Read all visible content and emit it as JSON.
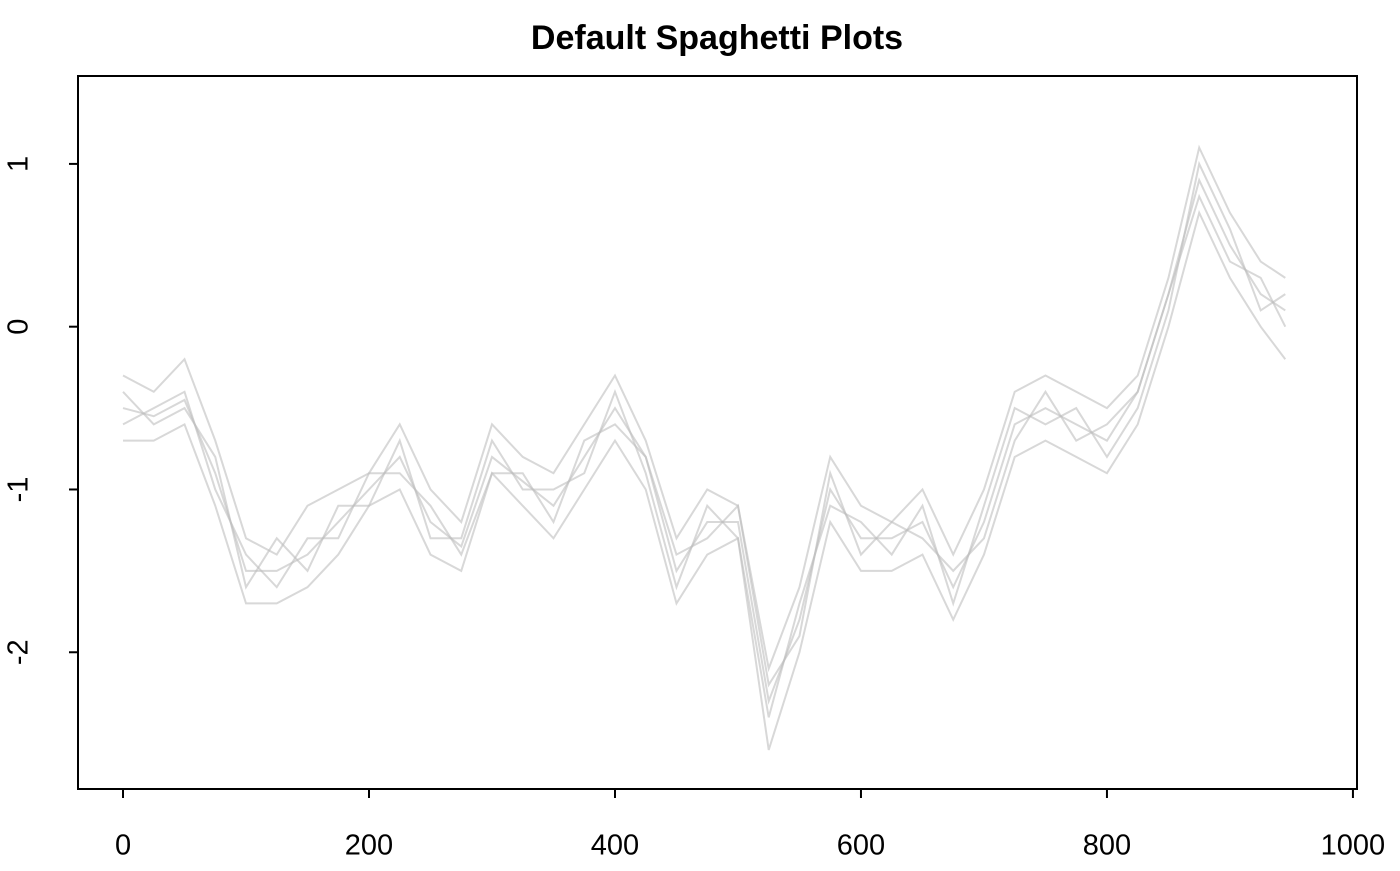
{
  "chart_data": {
    "type": "line",
    "title": "Default Spaghetti Plots",
    "x": [
      0,
      25,
      50,
      75,
      100,
      125,
      150,
      175,
      200,
      225,
      250,
      275,
      300,
      325,
      350,
      375,
      400,
      425,
      450,
      475,
      500,
      525,
      550,
      575,
      600,
      625,
      650,
      675,
      700,
      725,
      750,
      775,
      800,
      825,
      850,
      875,
      900,
      925,
      945
    ],
    "series": [
      {
        "color": "#bebebe",
        "values": [
          -0.5,
          -0.55,
          -0.45,
          -0.9,
          -1.5,
          -1.5,
          -1.4,
          -1.2,
          -1.0,
          -0.8,
          -1.2,
          -1.35,
          -0.8,
          -0.95,
          -1.1,
          -0.8,
          -0.5,
          -0.8,
          -1.5,
          -1.2,
          -1.2,
          -2.3,
          -1.8,
          -1.0,
          -1.3,
          -1.3,
          -1.2,
          -1.6,
          -1.2,
          -0.6,
          -0.5,
          -0.6,
          -0.7,
          -0.4,
          0.2,
          0.9,
          0.5,
          0.2,
          0.1
        ]
      },
      {
        "color": "#bebebe",
        "values": [
          -0.3,
          -0.4,
          -0.2,
          -0.7,
          -1.3,
          -1.4,
          -1.1,
          -1.0,
          -0.9,
          -0.6,
          -1.0,
          -1.2,
          -0.6,
          -0.8,
          -0.9,
          -0.6,
          -0.3,
          -0.7,
          -1.3,
          -1.0,
          -1.1,
          -2.1,
          -1.6,
          -0.8,
          -1.1,
          -1.2,
          -1.0,
          -1.4,
          -1.0,
          -0.4,
          -0.3,
          -0.4,
          -0.5,
          -0.3,
          0.3,
          1.1,
          0.7,
          0.4,
          0.3
        ]
      },
      {
        "color": "#bebebe",
        "values": [
          -0.7,
          -0.7,
          -0.6,
          -1.1,
          -1.7,
          -1.7,
          -1.6,
          -1.4,
          -1.1,
          -1.0,
          -1.4,
          -1.5,
          -0.9,
          -1.1,
          -1.3,
          -1.0,
          -0.7,
          -1.0,
          -1.7,
          -1.4,
          -1.3,
          -2.6,
          -2.0,
          -1.2,
          -1.5,
          -1.5,
          -1.4,
          -1.8,
          -1.4,
          -0.8,
          -0.7,
          -0.8,
          -0.9,
          -0.6,
          0.0,
          0.7,
          0.3,
          0.0,
          -0.2
        ]
      },
      {
        "color": "#bebebe",
        "values": [
          -0.4,
          -0.6,
          -0.5,
          -0.8,
          -1.6,
          -1.3,
          -1.5,
          -1.1,
          -1.1,
          -0.7,
          -1.3,
          -1.3,
          -0.7,
          -1.0,
          -1.0,
          -0.9,
          -0.4,
          -0.9,
          -1.6,
          -1.1,
          -1.3,
          -2.4,
          -1.7,
          -1.1,
          -1.2,
          -1.4,
          -1.1,
          -1.7,
          -1.1,
          -0.5,
          -0.6,
          -0.5,
          -0.8,
          -0.5,
          0.1,
          1.0,
          0.6,
          0.1,
          0.2
        ]
      },
      {
        "color": "#bebebe",
        "values": [
          -0.6,
          -0.5,
          -0.4,
          -1.0,
          -1.4,
          -1.6,
          -1.3,
          -1.3,
          -0.9,
          -0.9,
          -1.1,
          -1.4,
          -0.9,
          -0.9,
          -1.2,
          -0.7,
          -0.6,
          -0.8,
          -1.4,
          -1.3,
          -1.1,
          -2.2,
          -1.9,
          -0.9,
          -1.4,
          -1.2,
          -1.3,
          -1.5,
          -1.3,
          -0.7,
          -0.4,
          -0.7,
          -0.6,
          -0.4,
          0.2,
          0.8,
          0.4,
          0.3,
          0.0
        ]
      }
    ],
    "xlim": [
      -36.6,
      1003.3
    ],
    "xticks": [
      0,
      200,
      400,
      600,
      800,
      1000
    ],
    "ylim": [
      -2.84,
      1.54
    ],
    "yticks": [
      -2,
      -1,
      0,
      1
    ]
  }
}
